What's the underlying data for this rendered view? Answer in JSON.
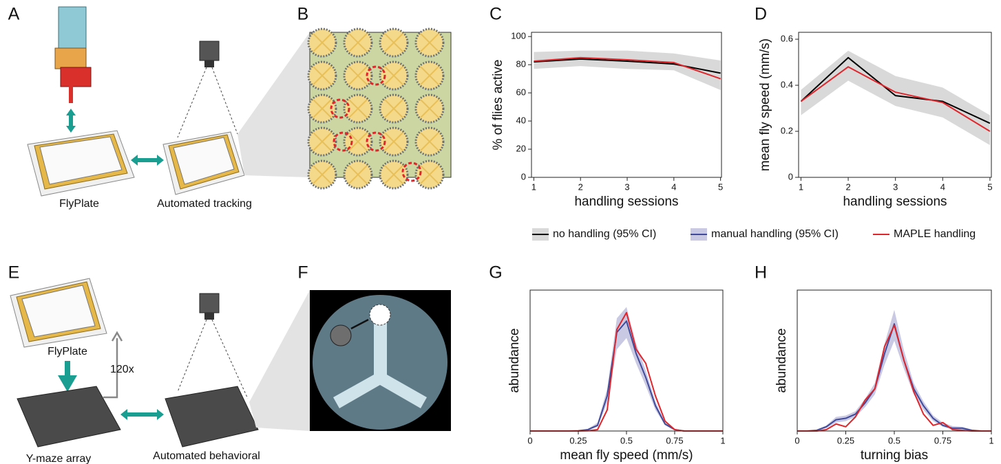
{
  "panel_labels": [
    "A",
    "B",
    "C",
    "D",
    "E",
    "F",
    "G",
    "H"
  ],
  "illustration_labels": {
    "flyplate_top": "FlyPlate",
    "tracking": "Automated tracking",
    "flyplate_bottom": "FlyPlate",
    "repeat": "120x",
    "ymaze": "Y-maze array",
    "behavioral": "Automated behavioral"
  },
  "legend": [
    {
      "label": "no handling (95% CI)",
      "line_color": "#000000",
      "patch_color": "#d9d9d9"
    },
    {
      "label": "manual handling (95% CI)",
      "line_color": "#3f4a9a",
      "patch_color": "#c9c9e3"
    },
    {
      "label": "MAPLE handling",
      "line_color": "#e0252b"
    }
  ],
  "chart_data": [
    {
      "type": "line",
      "xlabel": "handling sessions",
      "ylabel": "% of flies active",
      "x": [
        1,
        2,
        3,
        4,
        5
      ],
      "xlim": [
        0.95,
        5.02
      ],
      "xticks": [
        1,
        2,
        3,
        4,
        5
      ],
      "ylim": [
        0,
        103
      ],
      "yticks": [
        0,
        20,
        40,
        60,
        80,
        100
      ],
      "series": [
        {
          "color": "#000000",
          "values": [
            82,
            84,
            82.5,
            80.5,
            74
          ],
          "band": {
            "color": "#d9d9d9",
            "lower": [
              77,
              79,
              77,
              76,
              62
            ],
            "upper": [
              89,
              90,
              90,
              88,
              83
            ]
          }
        },
        {
          "color": "#e0252b",
          "values": [
            82.5,
            85,
            83.5,
            81.5,
            70
          ]
        }
      ]
    },
    {
      "type": "line",
      "xlabel": "handling sessions",
      "ylabel": "mean fly speed (mm/s)",
      "x": [
        1,
        2,
        3,
        4,
        5
      ],
      "xlim": [
        0.95,
        5.03
      ],
      "xticks": [
        1,
        2,
        3,
        4,
        5
      ],
      "ylim": [
        0,
        0.63
      ],
      "yticks": [
        0,
        0.2,
        0.4,
        0.6
      ],
      "series": [
        {
          "color": "#000000",
          "values": [
            0.33,
            0.52,
            0.355,
            0.33,
            0.235
          ],
          "band": {
            "color": "#d9d9d9",
            "lower": [
              0.27,
              0.42,
              0.31,
              0.26,
              0.14
            ],
            "upper": [
              0.38,
              0.55,
              0.44,
              0.39,
              0.27
            ]
          }
        },
        {
          "color": "#e0252b",
          "values": [
            0.33,
            0.48,
            0.37,
            0.325,
            0.2
          ]
        }
      ]
    },
    {
      "type": "line",
      "xlabel": "mean fly speed (mm/s)",
      "ylabel": "abundance",
      "x": [
        0,
        0.05,
        0.1,
        0.15,
        0.2,
        0.25,
        0.3,
        0.35,
        0.4,
        0.45,
        0.5,
        0.55,
        0.6,
        0.65,
        0.7,
        0.75,
        0.8,
        0.85,
        0.9,
        0.95,
        1
      ],
      "xlim": [
        0,
        1
      ],
      "xticks": [
        0,
        0.25,
        0.5,
        0.75,
        1
      ],
      "ylim": [
        0,
        1
      ],
      "series": [
        {
          "color": "#3f4a9a",
          "values": [
            0,
            0,
            0,
            0,
            0,
            0.002,
            0.01,
            0.04,
            0.25,
            0.7,
            0.78,
            0.55,
            0.38,
            0.18,
            0.05,
            0.01,
            0,
            0,
            0,
            0,
            0
          ],
          "band": {
            "color": "#c9c9e3",
            "lower": [
              0,
              0,
              0,
              0,
              0,
              0,
              0.005,
              0.03,
              0.2,
              0.58,
              0.66,
              0.48,
              0.32,
              0.15,
              0.04,
              0.005,
              0,
              0,
              0,
              0,
              0
            ],
            "upper": [
              0,
              0,
              0,
              0,
              0,
              0.004,
              0.015,
              0.06,
              0.3,
              0.8,
              0.88,
              0.62,
              0.43,
              0.21,
              0.06,
              0.015,
              0,
              0,
              0,
              0,
              0
            ]
          }
        },
        {
          "color": "#e0252b",
          "values": [
            0,
            0,
            0,
            0,
            0,
            0,
            0.002,
            0.01,
            0.15,
            0.72,
            0.84,
            0.58,
            0.48,
            0.25,
            0.07,
            0.01,
            0,
            0,
            0,
            0,
            0
          ]
        }
      ]
    },
    {
      "type": "line",
      "xlabel": "turning bias",
      "ylabel": "abundance",
      "x": [
        0,
        0.05,
        0.1,
        0.15,
        0.2,
        0.25,
        0.3,
        0.35,
        0.4,
        0.45,
        0.5,
        0.55,
        0.6,
        0.65,
        0.7,
        0.75,
        0.8,
        0.85,
        0.9,
        0.95,
        1
      ],
      "xlim": [
        0,
        1
      ],
      "xticks": [
        0,
        0.25,
        0.5,
        0.75,
        1
      ],
      "ylim": [
        0,
        1
      ],
      "series": [
        {
          "color": "#3f4a9a",
          "values": [
            0,
            0,
            0.005,
            0.03,
            0.08,
            0.09,
            0.12,
            0.2,
            0.3,
            0.55,
            0.76,
            0.5,
            0.3,
            0.18,
            0.09,
            0.04,
            0.02,
            0.02,
            0.005,
            0,
            0
          ],
          "band": {
            "color": "#c9c9e3",
            "lower": [
              0,
              0,
              0.002,
              0.02,
              0.06,
              0.07,
              0.1,
              0.17,
              0.26,
              0.47,
              0.64,
              0.44,
              0.26,
              0.15,
              0.07,
              0.03,
              0.01,
              0.01,
              0.002,
              0,
              0
            ],
            "upper": [
              0,
              0,
              0.008,
              0.04,
              0.1,
              0.11,
              0.14,
              0.23,
              0.34,
              0.62,
              0.86,
              0.57,
              0.34,
              0.21,
              0.11,
              0.06,
              0.035,
              0.03,
              0.01,
              0,
              0
            ]
          }
        },
        {
          "color": "#e0252b",
          "values": [
            0,
            0,
            0,
            0.01,
            0.05,
            0.03,
            0.1,
            0.22,
            0.3,
            0.6,
            0.75,
            0.5,
            0.28,
            0.12,
            0.04,
            0.06,
            0.01,
            0.005,
            0,
            0,
            0
          ]
        }
      ]
    }
  ]
}
